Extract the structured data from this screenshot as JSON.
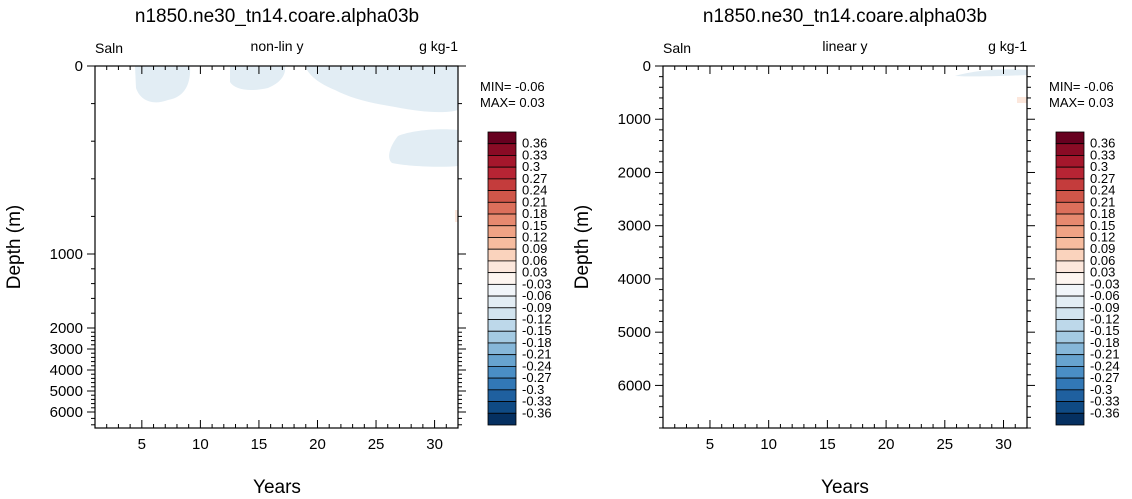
{
  "chart_data": [
    {
      "type": "heatmap",
      "title": "n1850.ne30_tn14.coare.alpha03b",
      "subtitle_left": "Saln",
      "subtitle_center": "non-lin y",
      "subtitle_right": "g kg-1",
      "xlabel": "Years",
      "ylabel": "Depth (m)",
      "xlim": [
        1,
        32
      ],
      "ylim": [
        0,
        6500
      ],
      "y_scale": "non-linear",
      "x_ticks": [
        "5",
        "10",
        "15",
        "20",
        "25",
        "30"
      ],
      "y_ticks": [
        "0",
        "1000",
        "2000",
        "3000",
        "4000",
        "5000",
        "6000"
      ],
      "min_label": "MIN= -0.06",
      "max_label": "MAX=  0.03",
      "grid": false,
      "legend": "right"
    },
    {
      "type": "heatmap",
      "title": "n1850.ne30_tn14.coare.alpha03b",
      "subtitle_left": "Saln",
      "subtitle_center": "linear y",
      "subtitle_right": "g kg-1",
      "xlabel": "Years",
      "ylabel": "Depth (m)",
      "xlim": [
        1,
        32
      ],
      "ylim": [
        0,
        6800
      ],
      "y_scale": "linear",
      "x_ticks": [
        "5",
        "10",
        "15",
        "20",
        "25",
        "30"
      ],
      "y_ticks": [
        "0",
        "1000",
        "2000",
        "3000",
        "4000",
        "5000",
        "6000"
      ],
      "min_label": "MIN= -0.06",
      "max_label": "MAX=  0.03",
      "grid": false,
      "legend": "right"
    }
  ],
  "colorbar": {
    "labels": [
      "0.36",
      "0.33",
      "0.3",
      "0.27",
      "0.24",
      "0.21",
      "0.18",
      "0.15",
      "0.12",
      "0.09",
      "0.06",
      "0.03",
      "-0.03",
      "-0.06",
      "-0.09",
      "-0.12",
      "-0.15",
      "-0.18",
      "-0.21",
      "-0.24",
      "-0.27",
      "-0.3",
      "-0.33",
      "-0.36"
    ],
    "colors": [
      "#67001f",
      "#8a0b25",
      "#a5172c",
      "#b72434",
      "#c43c3c",
      "#d05649",
      "#dc6f5b",
      "#e7896f",
      "#f0a385",
      "#f6bc9f",
      "#fad3bd",
      "#fce7dc",
      "#fdf5f0",
      "#f1f5f9",
      "#e3edf4",
      "#d2e4ef",
      "#bdd8ea",
      "#a4cae2",
      "#86b7d9",
      "#67a3cf",
      "#4a8ec5",
      "#3278b6",
      "#1f609f",
      "#0f4a84",
      "#053061"
    ]
  }
}
